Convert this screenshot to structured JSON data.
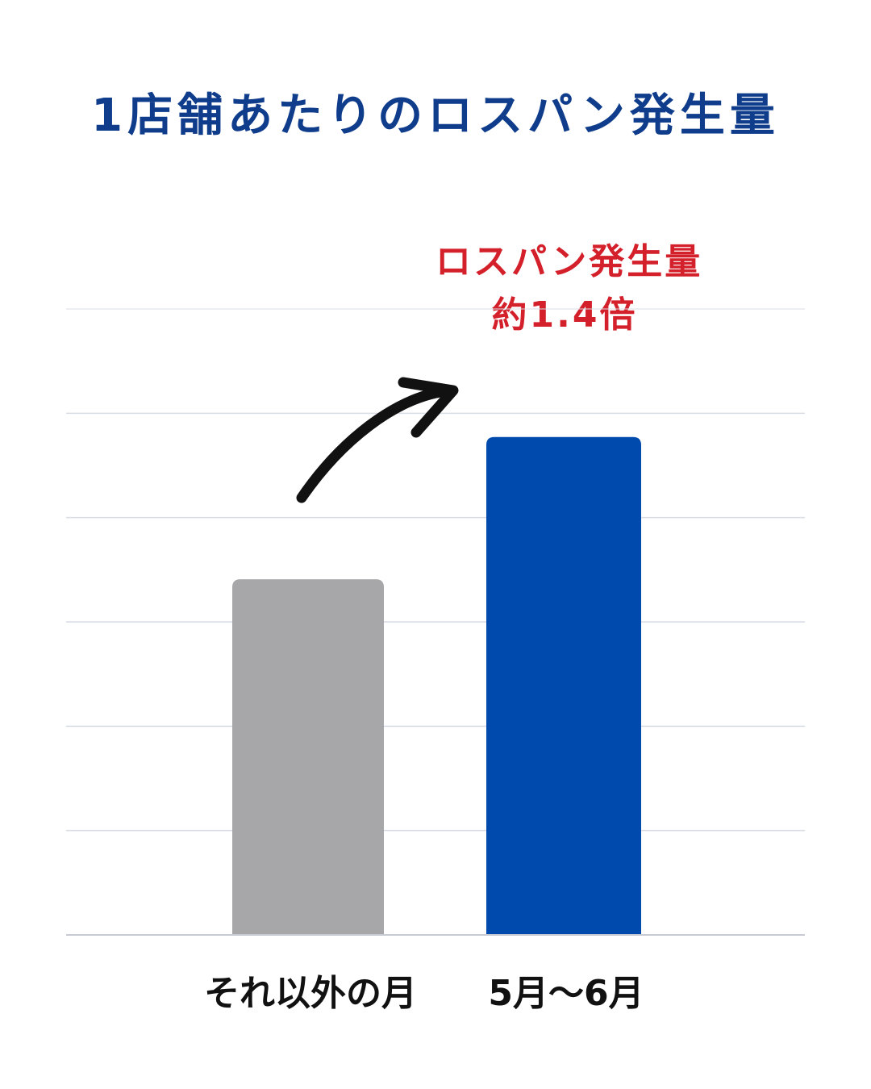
{
  "chart_data": {
    "type": "bar",
    "title": "1店舗あたりのロスパン発生量",
    "categories": [
      "それ以外の月",
      "5月～6月"
    ],
    "values": [
      1.0,
      1.4
    ],
    "bar_colors": [
      "#a7a6a9",
      "#004aad"
    ],
    "annotation": {
      "line1": "ロスパン発生量",
      "line2": "約1.4倍"
    },
    "ylim": [
      0,
      1.76
    ],
    "grid": true,
    "gridline_count": 6,
    "xlabel": "",
    "ylabel": ""
  },
  "colors": {
    "title": "#0f3d8c",
    "annotation": "#d3202a",
    "gridline": "#d9dde5",
    "arrow": "#111111"
  }
}
